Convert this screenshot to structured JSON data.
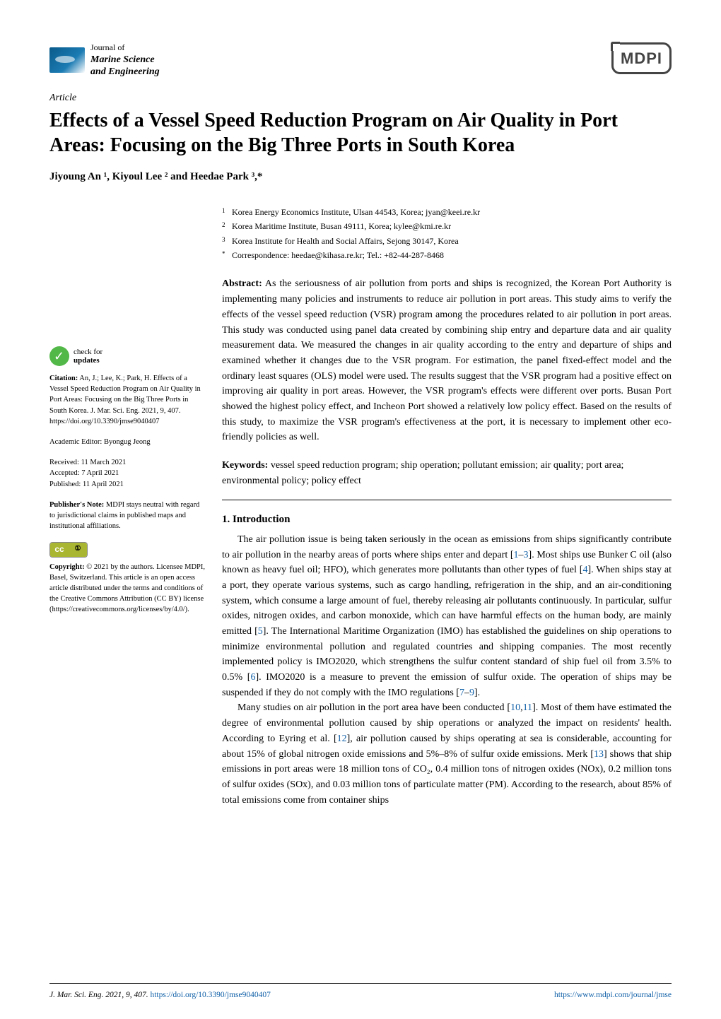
{
  "journal": {
    "prefix": "Journal of",
    "name_line1": "Marine Science",
    "name_line2": "and Engineering"
  },
  "publisher_logo": "MDPI",
  "article_type": "Article",
  "title": "Effects of a Vessel Speed Reduction Program on Air Quality in Port Areas: Focusing on the Big Three Ports in South Korea",
  "authors_html": "Jiyoung An ¹, Kiyoul Lee ² and Heedae Park ³,*",
  "affiliations": [
    {
      "num": "1",
      "text": "Korea Energy Economics Institute, Ulsan 44543, Korea; jyan@keei.re.kr"
    },
    {
      "num": "2",
      "text": "Korea Maritime Institute, Busan 49111, Korea; kylee@kmi.re.kr"
    },
    {
      "num": "3",
      "text": "Korea Institute for Health and Social Affairs, Sejong 30147, Korea"
    },
    {
      "num": "*",
      "text": "Correspondence: heedae@kihasa.re.kr; Tel.: +82-44-287-8468"
    }
  ],
  "abstract_label": "Abstract:",
  "abstract": "As the seriousness of air pollution from ports and ships is recognized, the Korean Port Authority is implementing many policies and instruments to reduce air pollution in port areas. This study aims to verify the effects of the vessel speed reduction (VSR) program among the procedures related to air pollution in port areas. This study was conducted using panel data created by combining ship entry and departure data and air quality measurement data. We measured the changes in air quality according to the entry and departure of ships and examined whether it changes due to the VSR program. For estimation, the panel fixed-effect model and the ordinary least squares (OLS) model were used. The results suggest that the VSR program had a positive effect on improving air quality in port areas. However, the VSR program's effects were different over ports. Busan Port showed the highest policy effect, and Incheon Port showed a relatively low policy effect. Based on the results of this study, to maximize the VSR program's effectiveness at the port, it is necessary to implement other eco-friendly policies as well.",
  "keywords_label": "Keywords:",
  "keywords": "vessel speed reduction program; ship operation; pollutant emission; air quality; port area; environmental policy; policy effect",
  "section1_title": "1. Introduction",
  "intro_para1_pre": "The air pollution issue is being taken seriously in the ocean as emissions from ships significantly contribute to air pollution in the nearby areas of ports where ships enter and depart [",
  "intro_para1_ref1": "1",
  "intro_para1_dash": "–",
  "intro_para1_ref2": "3",
  "intro_para1_mid1": "]. Most ships use Bunker C oil (also known as heavy fuel oil; HFO), which generates more pollutants than other types of fuel [",
  "intro_para1_ref3": "4",
  "intro_para1_mid2": "]. When ships stay at a port, they operate various systems, such as cargo handling, refrigeration in the ship, and an air-conditioning system, which consume a large amount of fuel, thereby releasing air pollutants continuously. In particular, sulfur oxides, nitrogen oxides, and carbon monoxide, which can have harmful effects on the human body, are mainly emitted [",
  "intro_para1_ref4": "5",
  "intro_para1_mid3": "]. The International Maritime Organization (IMO) has established the guidelines on ship operations to minimize environmental pollution and regulated countries and shipping companies. The most recently implemented policy is IMO2020, which strengthens the sulfur content standard of ship fuel oil from 3.5% to 0.5% [",
  "intro_para1_ref5": "6",
  "intro_para1_mid4": "]. IMO2020 is a measure to prevent the emission of sulfur oxide. The operation of ships may be suspended if they do not comply with the IMO regulations [",
  "intro_para1_ref6": "7",
  "intro_para1_ref7": "9",
  "intro_para1_end": "].",
  "intro_para2_pre": "Many studies on air pollution in the port area have been conducted [",
  "intro_para2_ref1": "10",
  "intro_para2_comma": ",",
  "intro_para2_ref2": "11",
  "intro_para2_mid1": "]. Most of them have estimated the degree of environmental pollution caused by ship operations or analyzed the impact on residents' health. According to Eyring et al. [",
  "intro_para2_ref3": "12",
  "intro_para2_mid2": "], air pollution caused by ships operating at sea is considerable, accounting for about 15% of global nitrogen oxide emissions and 5%–8% of sulfur oxide emissions. Merk [",
  "intro_para2_ref4": "13",
  "intro_para2_mid3": "] shows that ship emissions in port areas were 18 million tons of CO₂, 0.4 million tons of nitrogen oxides (NOx), 0.2 million tons of sulfur oxides (SOx), and 0.03 million tons of particulate matter (PM). According to the research, about 85% of total emissions come from container ships",
  "sidebar": {
    "check_line1": "check for",
    "check_line2": "updates",
    "citation_label": "Citation:",
    "citation": "An, J.; Lee, K.; Park, H. Effects of a Vessel Speed Reduction Program on Air Quality in Port Areas: Focusing on the Big Three Ports in South Korea. J. Mar. Sci. Eng. 2021, 9, 407. https://doi.org/10.3390/jmse9040407",
    "editor_label": "Academic Editor:",
    "editor": "Byongug Jeong",
    "received_label": "Received:",
    "received": "11 March 2021",
    "accepted_label": "Accepted:",
    "accepted": "7 April 2021",
    "published_label": "Published:",
    "published": "11 April 2021",
    "note_label": "Publisher's Note:",
    "note": "MDPI stays neutral with regard to jurisdictional claims in published maps and institutional affiliations.",
    "copyright_label": "Copyright:",
    "copyright": "© 2021 by the authors. Licensee MDPI, Basel, Switzerland. This article is an open access article distributed under the terms and conditions of the Creative Commons Attribution (CC BY) license (https://creativecommons.org/licenses/by/4.0/)."
  },
  "footer": {
    "left_pre": "J. Mar. Sci. Eng. 2021, 9, 407. ",
    "left_link": "https://doi.org/10.3390/jmse9040407",
    "right": "https://www.mdpi.com/journal/jmse"
  },
  "colors": {
    "link": "#1060a8",
    "logo_bg": "#0a5a8a",
    "check_green": "#52b848",
    "cc_green": "#a9b632"
  }
}
